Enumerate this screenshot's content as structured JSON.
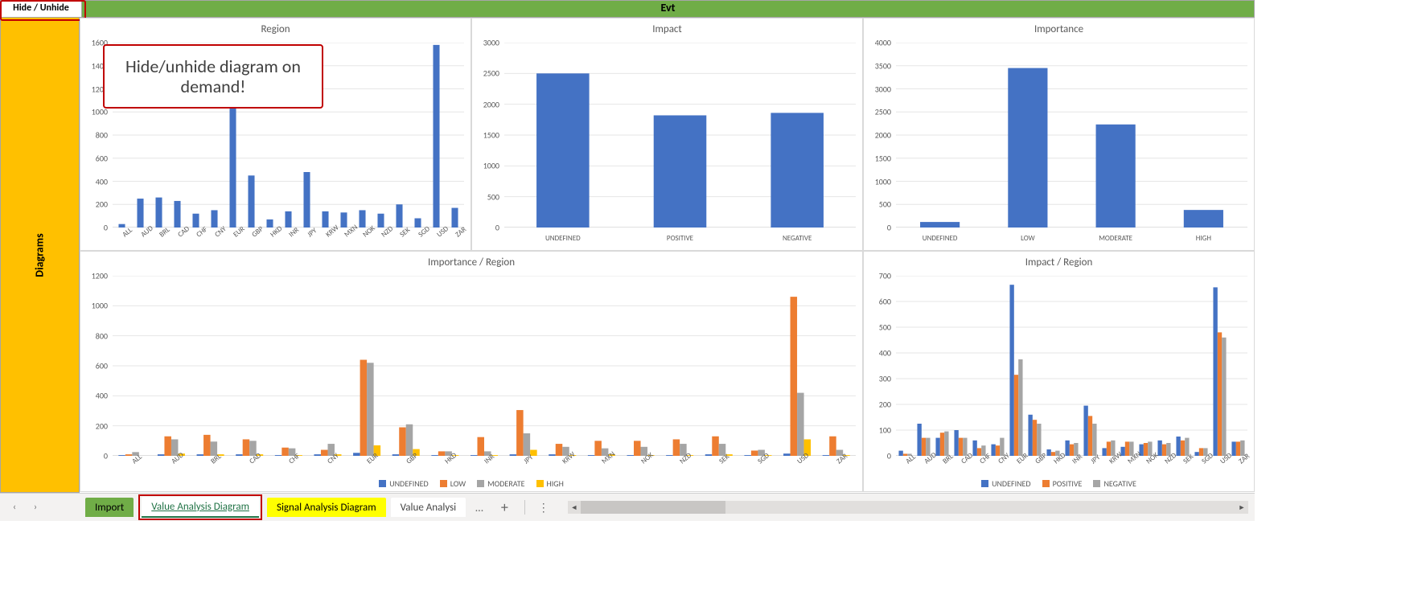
{
  "header": {
    "hide_label": "Hide / Unhide",
    "title": "Evt",
    "title_bg": "#70ad47",
    "side_label": "Diagrams",
    "side_bg": "#ffc000",
    "callout_text": "Hide/unhide diagram on demand!",
    "callout_border": "#c00000"
  },
  "colors": {
    "series_blue": "#4472c4",
    "series_orange": "#ed7d31",
    "series_grey": "#a5a5a5",
    "series_yellow": "#ffc000",
    "grid": "#e6e6e6",
    "axis_text": "#595959"
  },
  "chart_region": {
    "title": "Region",
    "type": "bar",
    "categories": [
      "ALL",
      "AUD",
      "BRL",
      "CAD",
      "CHF",
      "CNY",
      "EUR",
      "GBP",
      "HKD",
      "INR",
      "JPY",
      "KRW",
      "MXN",
      "NOK",
      "NZD",
      "SEK",
      "SGD",
      "USD",
      "ZAR"
    ],
    "values": [
      30,
      250,
      260,
      230,
      120,
      150,
      1250,
      450,
      70,
      140,
      480,
      140,
      130,
      150,
      120,
      200,
      80,
      1580,
      170
    ],
    "ymax": 1600,
    "ytick": 200,
    "bar_color": "#4472c4",
    "xlabel_rotate": true
  },
  "chart_impact": {
    "title": "Impact",
    "type": "bar",
    "categories": [
      "UNDEFINED",
      "POSITIVE",
      "NEGATIVE"
    ],
    "values": [
      2500,
      1820,
      1860
    ],
    "ymax": 3000,
    "ytick": 500,
    "bar_color": "#4472c4",
    "xlabel_rotate": false
  },
  "chart_importance": {
    "title": "Importance",
    "type": "bar",
    "categories": [
      "UNDEFINED",
      "LOW",
      "MODERATE",
      "HIGH"
    ],
    "values": [
      120,
      3450,
      2230,
      380
    ],
    "ymax": 4000,
    "ytick": 500,
    "bar_color": "#4472c4",
    "xlabel_rotate": false
  },
  "chart_imp_region": {
    "title": "Importance / Region",
    "type": "grouped-bar",
    "categories": [
      "ALL",
      "AUD",
      "BRL",
      "CAD",
      "CHF",
      "CNY",
      "EUR",
      "GBP",
      "HKD",
      "INR",
      "JPY",
      "KRW",
      "MXN",
      "NOK",
      "NZD",
      "SEK",
      "SGD",
      "USD",
      "ZAR"
    ],
    "series": [
      {
        "name": "UNDEFINED",
        "color": "#4472c4",
        "values": [
          5,
          10,
          10,
          10,
          5,
          10,
          20,
          10,
          5,
          5,
          10,
          10,
          5,
          5,
          5,
          10,
          5,
          15,
          5
        ]
      },
      {
        "name": "LOW",
        "color": "#ed7d31",
        "values": [
          10,
          130,
          140,
          110,
          55,
          40,
          640,
          190,
          30,
          125,
          305,
          80,
          100,
          100,
          110,
          130,
          35,
          1060,
          130
        ]
      },
      {
        "name": "MODERATE",
        "color": "#a5a5a5",
        "values": [
          25,
          110,
          95,
          100,
          50,
          80,
          620,
          210,
          30,
          30,
          150,
          60,
          50,
          60,
          80,
          80,
          40,
          420,
          40
        ]
      },
      {
        "name": "HIGH",
        "color": "#ffc000",
        "values": [
          0,
          15,
          10,
          10,
          5,
          10,
          70,
          45,
          5,
          5,
          40,
          5,
          10,
          5,
          5,
          10,
          5,
          110,
          5
        ]
      }
    ],
    "ymax": 1200,
    "ytick": 200,
    "xlabel_rotate": true
  },
  "chart_impact_region": {
    "title": "Impact / Region",
    "type": "grouped-bar",
    "categories": [
      "ALL",
      "AUD",
      "BRL",
      "CAD",
      "CHF",
      "CNY",
      "EUR",
      "GBP",
      "HKD",
      "INR",
      "JPY",
      "KRW",
      "MXN",
      "NOK",
      "NZD",
      "SEK",
      "SGD",
      "USD",
      "ZAR"
    ],
    "series": [
      {
        "name": "UNDEFINED",
        "color": "#4472c4",
        "values": [
          20,
          125,
          70,
          100,
          60,
          45,
          665,
          160,
          25,
          60,
          195,
          30,
          35,
          45,
          60,
          75,
          15,
          655,
          55
        ]
      },
      {
        "name": "POSITIVE",
        "color": "#ed7d31",
        "values": [
          8,
          70,
          90,
          70,
          30,
          40,
          315,
          140,
          15,
          45,
          155,
          55,
          55,
          50,
          45,
          60,
          30,
          480,
          55
        ]
      },
      {
        "name": "NEGATIVE",
        "color": "#a5a5a5",
        "values": [
          8,
          70,
          95,
          70,
          40,
          70,
          375,
          125,
          20,
          50,
          125,
          60,
          55,
          55,
          50,
          70,
          30,
          460,
          60
        ]
      }
    ],
    "ymax": 700,
    "ytick": 100,
    "xlabel_rotate": true
  },
  "tabs": {
    "nav_prev": "‹",
    "nav_next": "›",
    "items": [
      {
        "label": "Import",
        "kind": "import"
      },
      {
        "label": "Value Analysis Diagram",
        "kind": "active"
      },
      {
        "label": "Signal Analysis Diagram",
        "kind": "signal"
      },
      {
        "label": "Value Analysi",
        "kind": "plain"
      }
    ],
    "overflow": "…",
    "add": "+"
  }
}
